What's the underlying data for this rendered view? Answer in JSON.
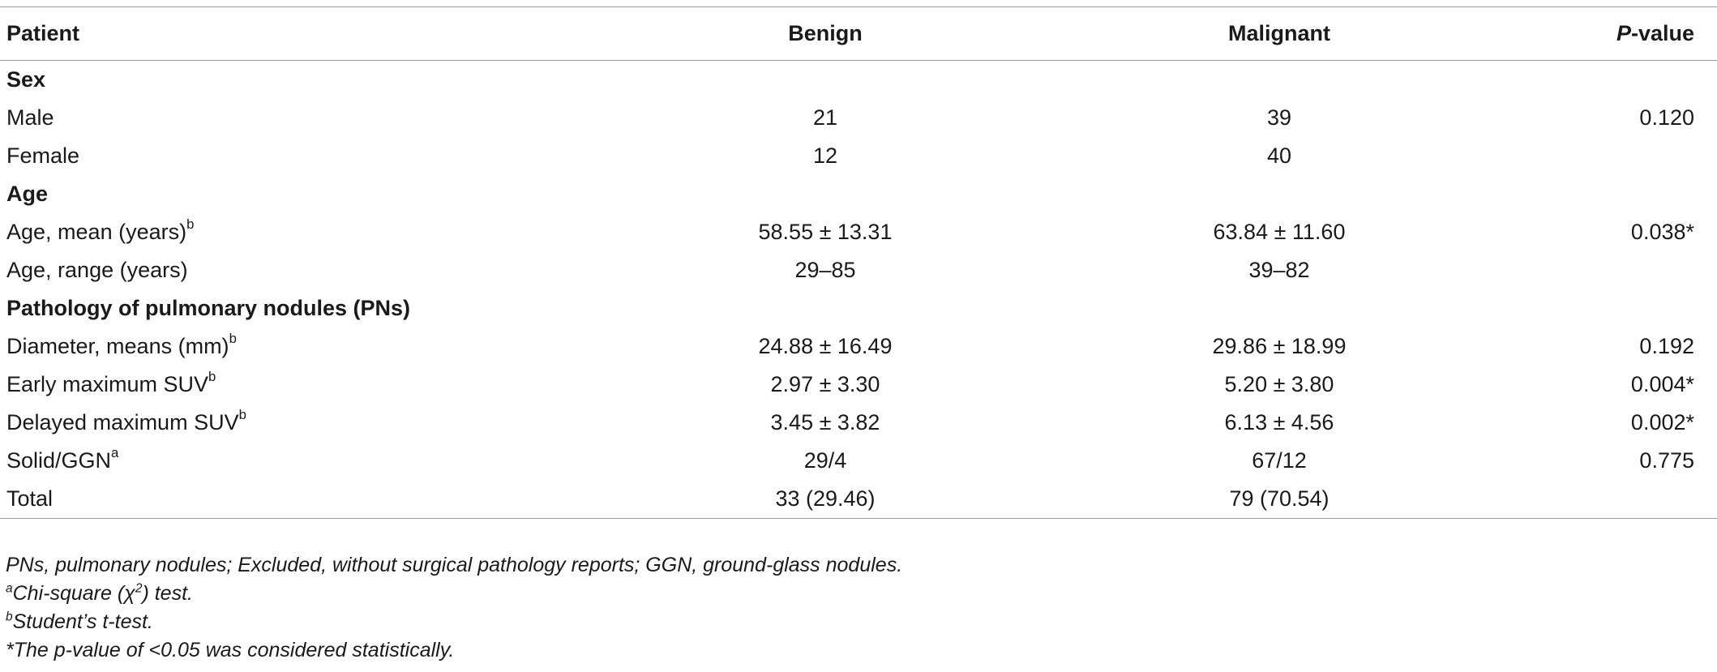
{
  "table": {
    "headers": {
      "patient": "Patient",
      "benign": "Benign",
      "malignant": "Malignant",
      "pvalue_prefix": "P",
      "pvalue_suffix": "-value"
    },
    "rows": [
      {
        "label": "Sex",
        "section": true
      },
      {
        "label": "Male",
        "sup": "",
        "benign": "21",
        "malignant": "39",
        "pvalue": "0.120"
      },
      {
        "label": "Female",
        "sup": "",
        "benign": "12",
        "malignant": "40",
        "pvalue": ""
      },
      {
        "label": "Age",
        "section": true
      },
      {
        "label": "Age, mean (years)",
        "sup": "b",
        "benign": "58.55 ± 13.31",
        "malignant": "63.84 ± 11.60",
        "pvalue": "0.038*"
      },
      {
        "label": "Age, range (years)",
        "sup": "",
        "benign": "29–85",
        "malignant": "39–82",
        "pvalue": ""
      },
      {
        "label": "Pathology of pulmonary nodules (PNs)",
        "section": true
      },
      {
        "label": "Diameter, means (mm)",
        "sup": "b",
        "benign": "24.88 ± 16.49",
        "malignant": "29.86 ± 18.99",
        "pvalue": "0.192"
      },
      {
        "label": "Early maximum SUV",
        "sup": "b",
        "benign": "2.97 ± 3.30",
        "malignant": "5.20 ± 3.80",
        "pvalue": "0.004*"
      },
      {
        "label": "Delayed maximum SUV",
        "sup": "b",
        "benign": "3.45 ± 3.82",
        "malignant": "6.13 ± 4.56",
        "pvalue": "0.002*"
      },
      {
        "label": "Solid/GGN",
        "sup": "a",
        "benign": "29/4",
        "malignant": "67/12",
        "pvalue": "0.775"
      },
      {
        "label": "Total",
        "sup": "",
        "benign": "33 (29.46)",
        "malignant": "79 (70.54)",
        "pvalue": ""
      }
    ]
  },
  "footnotes": {
    "abbrev": "PNs, pulmonary nodules; Excluded, without surgical pathology reports; GGN, ground-glass nodules.",
    "a_mark": "a",
    "a_text_pre": "Chi-square (χ",
    "a_text_sup": "2",
    "a_text_post": ") test.",
    "b_mark": "b",
    "b_text": "Student’s t-test.",
    "star_text": "*The p-value of <0.05 was considered statistically."
  }
}
